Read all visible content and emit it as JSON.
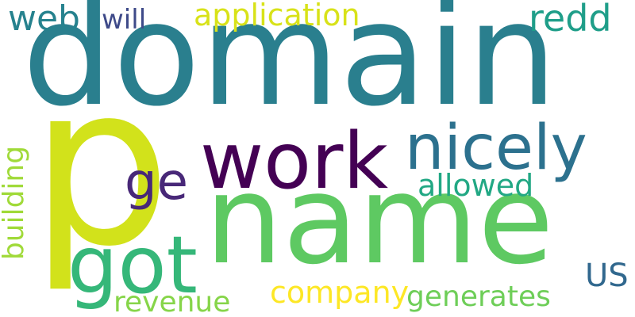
{
  "words": [
    {
      "text": "domain",
      "color": "#2a7f8e",
      "vertical": false
    },
    {
      "text": "p",
      "color": "#d2e21b",
      "vertical": false
    },
    {
      "text": "name",
      "color": "#5ec962",
      "vertical": false
    },
    {
      "text": "work",
      "color": "#440154",
      "vertical": false
    },
    {
      "text": "nicely",
      "color": "#2c718e",
      "vertical": false
    },
    {
      "text": "got",
      "color": "#35b779",
      "vertical": false
    },
    {
      "text": "ge",
      "color": "#482878",
      "vertical": false
    },
    {
      "text": "allowed",
      "color": "#22a884",
      "vertical": false
    },
    {
      "text": "application",
      "color": "#d8e219",
      "vertical": false
    },
    {
      "text": "web",
      "color": "#26828e",
      "vertical": false
    },
    {
      "text": "will",
      "color": "#3e4a89",
      "vertical": false
    },
    {
      "text": "redd",
      "color": "#1f9e89",
      "vertical": false
    },
    {
      "text": "building",
      "color": "#a0da39",
      "vertical": true
    },
    {
      "text": "company",
      "color": "#fde725",
      "vertical": false
    },
    {
      "text": "generates",
      "color": "#6ece58",
      "vertical": false
    },
    {
      "text": "revenue",
      "color": "#86d549",
      "vertical": false
    },
    {
      "text": "US",
      "color": "#31688e",
      "vertical": false
    }
  ]
}
